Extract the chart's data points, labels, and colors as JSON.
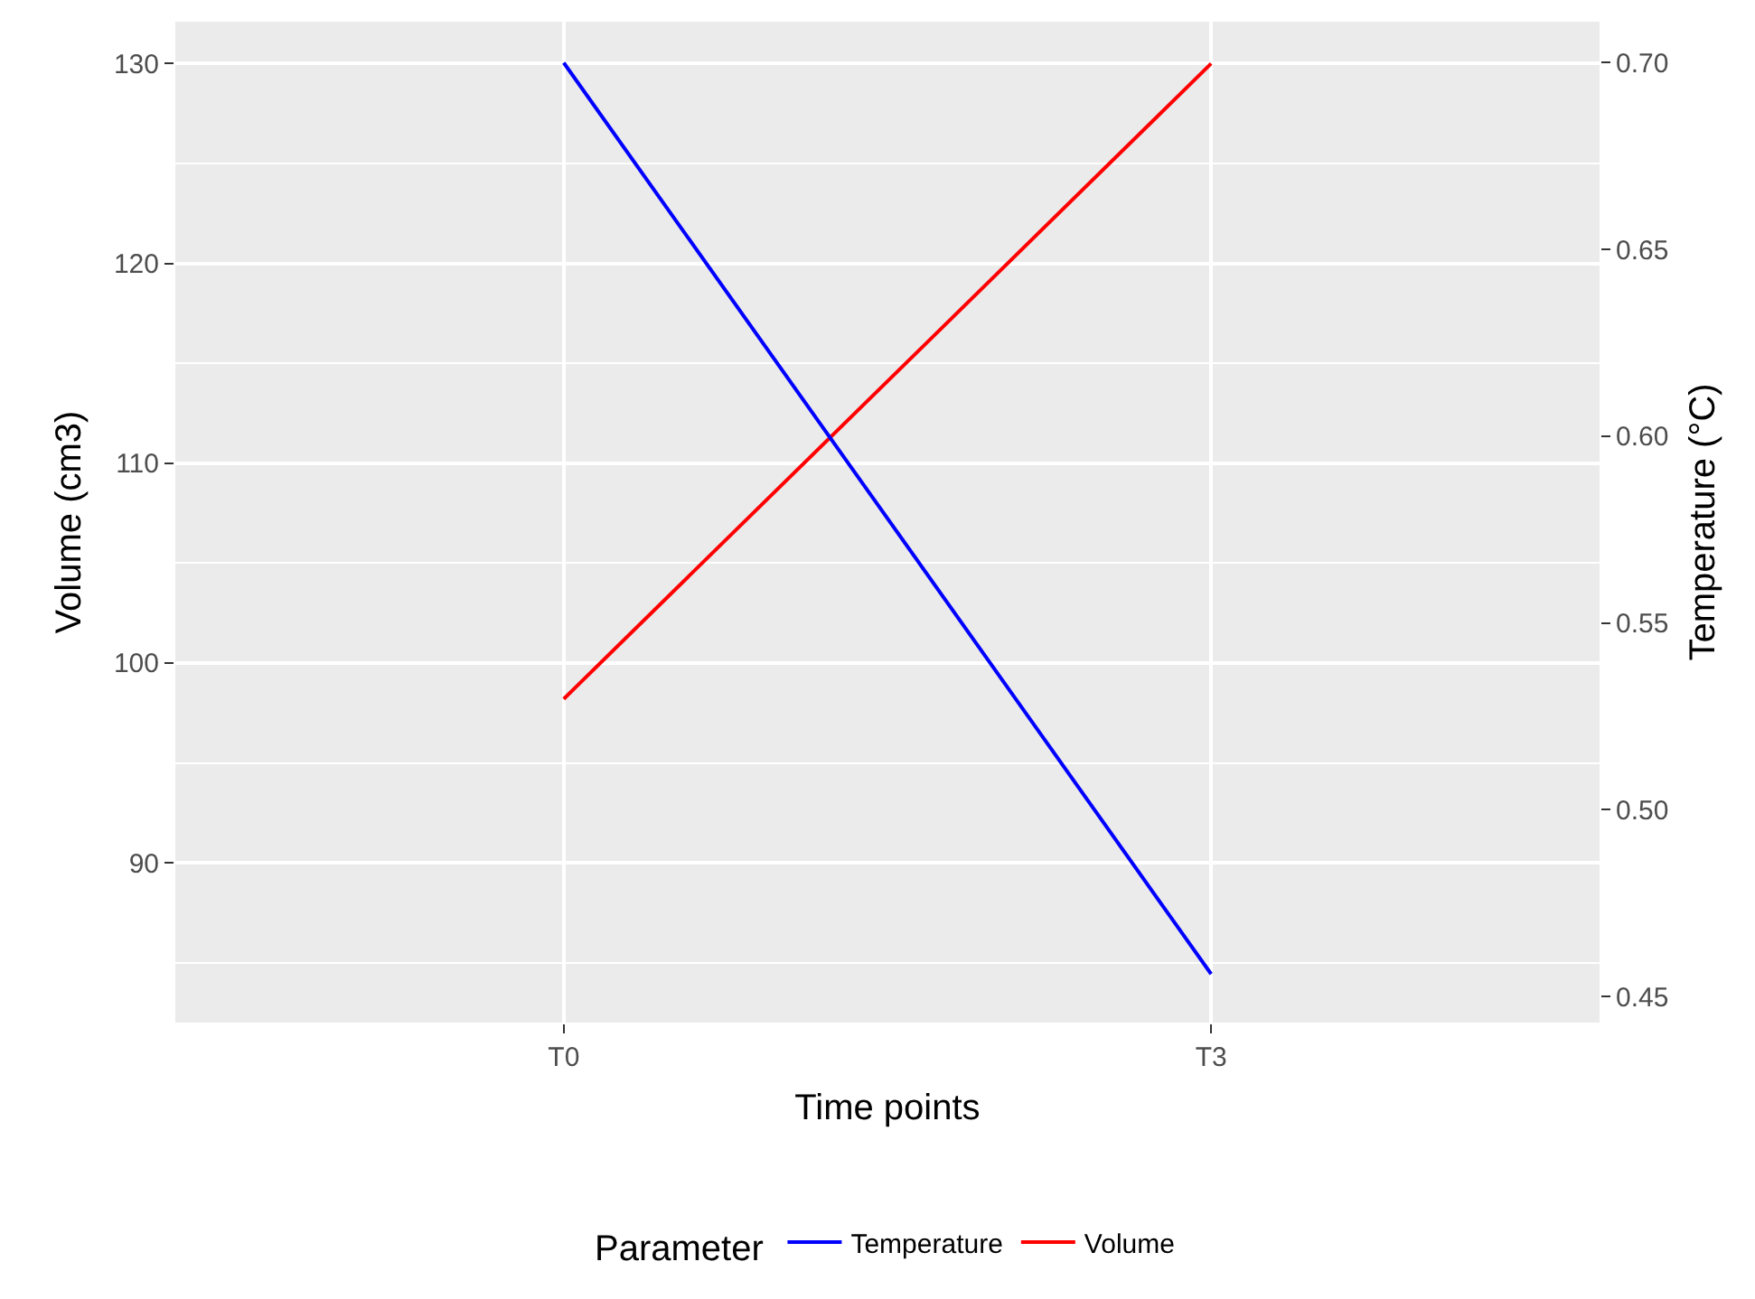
{
  "chart_data": {
    "type": "line",
    "xlabel": "Time points",
    "ylabel": "Volume (cm3)",
    "y2label": "Temperature (°C)",
    "legend_title": "Parameter",
    "categories": [
      "T0",
      "T3"
    ],
    "series": [
      {
        "name": "Temperature",
        "color": "#0000ff",
        "values": [
          0.7,
          0.456
        ],
        "axis": "y2"
      },
      {
        "name": "Volume",
        "color": "#ff0000",
        "values": [
          98.2,
          130
        ]
      }
    ],
    "ylim": [
      82,
      132.1
    ],
    "yticks": [
      90,
      100,
      110,
      120,
      130
    ],
    "y2lim": [
      0.443,
      0.711
    ],
    "y2ticks": [
      {
        "value": 0.45,
        "label": "0.45"
      },
      {
        "value": 0.5,
        "label": "0.50"
      },
      {
        "value": 0.55,
        "label": "0.55"
      },
      {
        "value": 0.6,
        "label": "0.60"
      },
      {
        "value": 0.65,
        "label": "0.65"
      },
      {
        "value": 0.7,
        "label": "0.70"
      }
    ],
    "grid": true,
    "legend": "bottom",
    "marker": "none",
    "line_style": "solid"
  }
}
